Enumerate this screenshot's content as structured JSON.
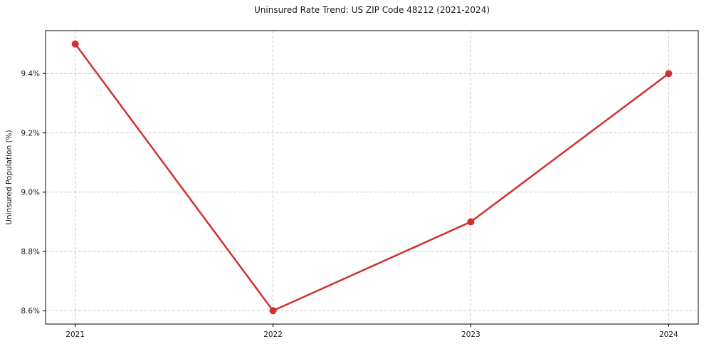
{
  "chart_data": {
    "type": "line",
    "title": "Uninsured Rate Trend: US ZIP Code 48212 (2021-2024)",
    "xlabel": "",
    "ylabel": "Uninsured Population (%)",
    "x": [
      2021,
      2022,
      2023,
      2024
    ],
    "values": [
      9.5,
      8.6,
      8.9,
      9.4
    ],
    "xtick_labels": [
      "2021",
      "2022",
      "2023",
      "2024"
    ],
    "ytick_values": [
      8.6,
      8.8,
      9.0,
      9.2,
      9.4
    ],
    "ytick_labels": [
      "8.6%",
      "8.8%",
      "9.0%",
      "9.2%",
      "9.4%"
    ],
    "xlim": [
      2020.85,
      2024.15
    ],
    "ylim": [
      8.555,
      9.545
    ],
    "grid": true,
    "legend": "none",
    "line_color": "#d32f2f",
    "marker_color": "#d32f2f",
    "grid_color": "#c9c9c9",
    "spine_color": "#000000",
    "tick_color": "#000000",
    "text_color": "#1a1a1a"
  }
}
